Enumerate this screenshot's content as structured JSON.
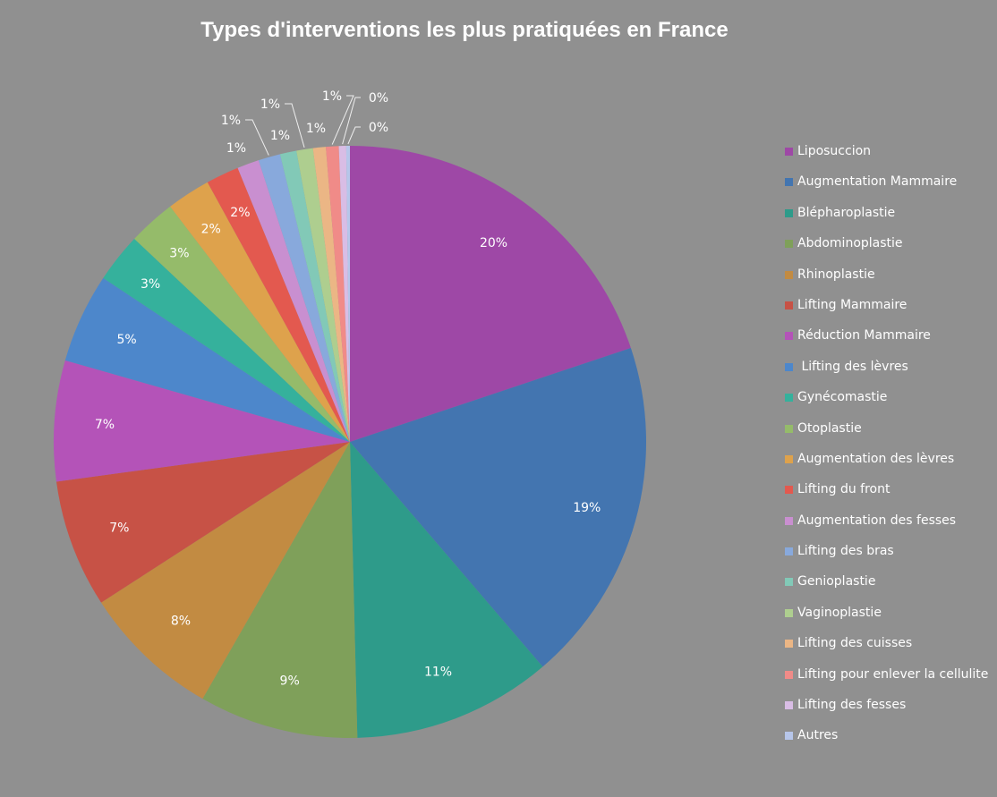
{
  "chart_data": {
    "type": "pie",
    "title": "Types d'interventions les plus pratiquées en France",
    "legend_position": "right",
    "slices": [
      {
        "label": "Liposuccion",
        "value": 19.9,
        "display": "20%",
        "color": "#9e48a6"
      },
      {
        "label": "Augmentation Mammaire",
        "value": 18.9,
        "display": "19%",
        "color": "#4375b0"
      },
      {
        "label": "Blépharoplastie",
        "value": 10.9,
        "display": "11%",
        "color": "#2e9b8a"
      },
      {
        "label": "Abdominoplastie",
        "value": 8.7,
        "display": "9%",
        "color": "#7fa05a"
      },
      {
        "label": "Rhinoplastie",
        "value": 7.6,
        "display": "8%",
        "color": "#c28b42"
      },
      {
        "label": "Lifting Mammaire",
        "value": 7.0,
        "display": "7%",
        "color": "#c75246"
      },
      {
        "label": "Réduction Mammaire",
        "value": 6.6,
        "display": "7%",
        "color": "#b453b8"
      },
      {
        "label": " Lifting des lèvres",
        "value": 4.9,
        "display": "5%",
        "color": "#4d87cb"
      },
      {
        "label": "Gynécomastie",
        "value": 2.7,
        "display": "3%",
        "color": "#35b19c"
      },
      {
        "label": "Otoplastie",
        "value": 2.6,
        "display": "3%",
        "color": "#95bb6a"
      },
      {
        "label": "Augmentation des lèvres",
        "value": 2.4,
        "display": "2%",
        "color": "#dea24c"
      },
      {
        "label": "Lifting du front",
        "value": 1.8,
        "display": "2%",
        "color": "#e3594f"
      },
      {
        "label": "Augmentation des fesses",
        "value": 1.2,
        "display": "1%",
        "color": "#c98fd0"
      },
      {
        "label": "Lifting des bras",
        "value": 1.2,
        "display": "1%",
        "color": "#88a9dc"
      },
      {
        "label": "Genioplastie",
        "value": 0.9,
        "display": "1%",
        "color": "#82c9b7"
      },
      {
        "label": "Vaginoplastie",
        "value": 0.9,
        "display": "1%",
        "color": "#aece8f"
      },
      {
        "label": "Lifting des cuisses",
        "value": 0.7,
        "display": "1%",
        "color": "#ebb685"
      },
      {
        "label": "Lifting pour enlever la cellulite",
        "value": 0.7,
        "display": "1%",
        "color": "#f08b88"
      },
      {
        "label": "Lifting des fesses",
        "value": 0.4,
        "display": "0%",
        "color": "#d9bde5"
      },
      {
        "label": "Autres",
        "value": 0.2,
        "display": "0%",
        "color": "#b7c6ea"
      }
    ]
  }
}
